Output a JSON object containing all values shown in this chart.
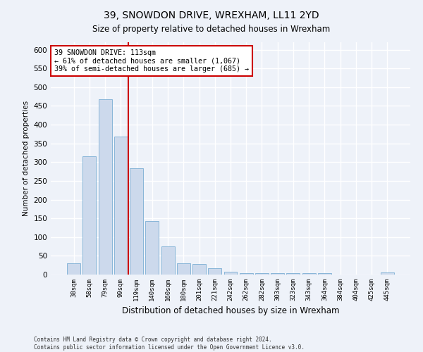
{
  "title": "39, SNOWDON DRIVE, WREXHAM, LL11 2YD",
  "subtitle": "Size of property relative to detached houses in Wrexham",
  "xlabel": "Distribution of detached houses by size in Wrexham",
  "ylabel": "Number of detached properties",
  "bar_color": "#ccd9ec",
  "bar_edge_color": "#7aadd4",
  "categories": [
    "38sqm",
    "58sqm",
    "79sqm",
    "99sqm",
    "119sqm",
    "140sqm",
    "160sqm",
    "180sqm",
    "201sqm",
    "221sqm",
    "242sqm",
    "262sqm",
    "282sqm",
    "303sqm",
    "323sqm",
    "343sqm",
    "364sqm",
    "384sqm",
    "404sqm",
    "425sqm",
    "445sqm"
  ],
  "values": [
    31,
    315,
    467,
    368,
    283,
    142,
    75,
    31,
    28,
    16,
    8,
    4,
    4,
    4,
    4,
    4,
    4,
    0,
    0,
    0,
    5
  ],
  "vline_x": 3.5,
  "annotation_text": "39 SNOWDON DRIVE: 113sqm\n← 61% of detached houses are smaller (1,067)\n39% of semi-detached houses are larger (685) →",
  "annotation_box_color": "#ffffff",
  "annotation_box_edge_color": "#cc0000",
  "vline_color": "#cc0000",
  "ylim": [
    0,
    620
  ],
  "yticks": [
    0,
    50,
    100,
    150,
    200,
    250,
    300,
    350,
    400,
    450,
    500,
    550,
    600
  ],
  "footer_line1": "Contains HM Land Registry data © Crown copyright and database right 2024.",
  "footer_line2": "Contains public sector information licensed under the Open Government Licence v3.0.",
  "bg_color": "#eef2f9",
  "plot_bg_color": "#eef2f9",
  "grid_color": "#ffffff",
  "title_fontsize": 10,
  "subtitle_fontsize": 9
}
